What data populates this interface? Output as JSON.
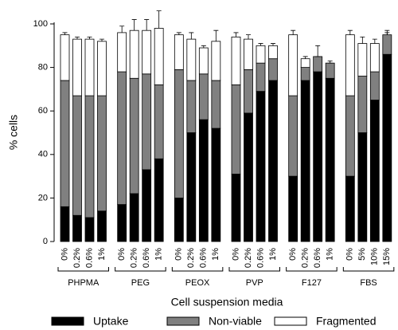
{
  "chart_data": {
    "type": "stacked-bar",
    "y_label": "% cells",
    "x_label": "Cell suspension media",
    "groups": [
      {
        "name": "PHPMA",
        "categories": [
          "0%",
          "0.2%",
          "0.6%",
          "1%"
        ]
      },
      {
        "name": "PEG",
        "categories": [
          "0%",
          "0.2%",
          "0.6%",
          "1%"
        ]
      },
      {
        "name": "PEOX",
        "categories": [
          "0%",
          "0.2%",
          "0.6%",
          "1%"
        ]
      },
      {
        "name": "PVP",
        "categories": [
          "0%",
          "0.2%",
          "0.6%",
          "1%"
        ]
      },
      {
        "name": "F127",
        "categories": [
          "0%",
          "0.2%",
          "0.6%",
          "1%"
        ]
      },
      {
        "name": "FBS",
        "categories": [
          "0%",
          "5%",
          "10%",
          "15%"
        ]
      }
    ],
    "series": [
      {
        "name": "Uptake",
        "color": "#000000",
        "values": [
          16,
          12,
          11,
          14,
          17,
          22,
          33,
          38,
          20,
          50,
          56,
          52,
          31,
          59,
          69,
          74,
          30,
          74,
          78,
          75,
          30,
          50,
          65,
          86
        ],
        "errors": [
          1,
          1,
          1,
          1,
          4,
          3,
          8,
          8,
          2,
          10,
          7,
          12,
          4,
          6,
          6,
          4,
          4,
          2,
          3,
          2,
          4,
          8,
          7,
          4
        ]
      },
      {
        "name": "Non-viable",
        "color": "#808080",
        "values": [
          58,
          55,
          56,
          53,
          61,
          53,
          44,
          34,
          59,
          24,
          21,
          22,
          41,
          20,
          13,
          10,
          37,
          6,
          7,
          7,
          37,
          26,
          13,
          9
        ],
        "errors": [
          3,
          4,
          3,
          5,
          12,
          10,
          8,
          10,
          1,
          3,
          1,
          5,
          6,
          4,
          3,
          1,
          3,
          1,
          5,
          1,
          8,
          4,
          2,
          2
        ]
      },
      {
        "name": "Fragmented",
        "color": "#ffffff",
        "values": [
          21,
          26,
          26,
          25,
          18,
          22,
          20,
          26,
          16,
          19,
          12,
          18,
          22,
          14,
          8,
          6,
          28,
          4,
          0,
          0,
          28,
          15,
          13,
          0
        ],
        "errors": [
          1,
          1,
          1,
          1,
          3,
          5,
          5,
          8,
          1,
          3,
          1,
          5,
          2,
          2,
          1,
          1,
          2,
          1,
          0,
          0,
          2,
          3,
          2,
          1
        ]
      }
    ],
    "ylim": [
      0,
      100
    ],
    "yticks": [
      0,
      20,
      40,
      60,
      80,
      100
    ]
  }
}
